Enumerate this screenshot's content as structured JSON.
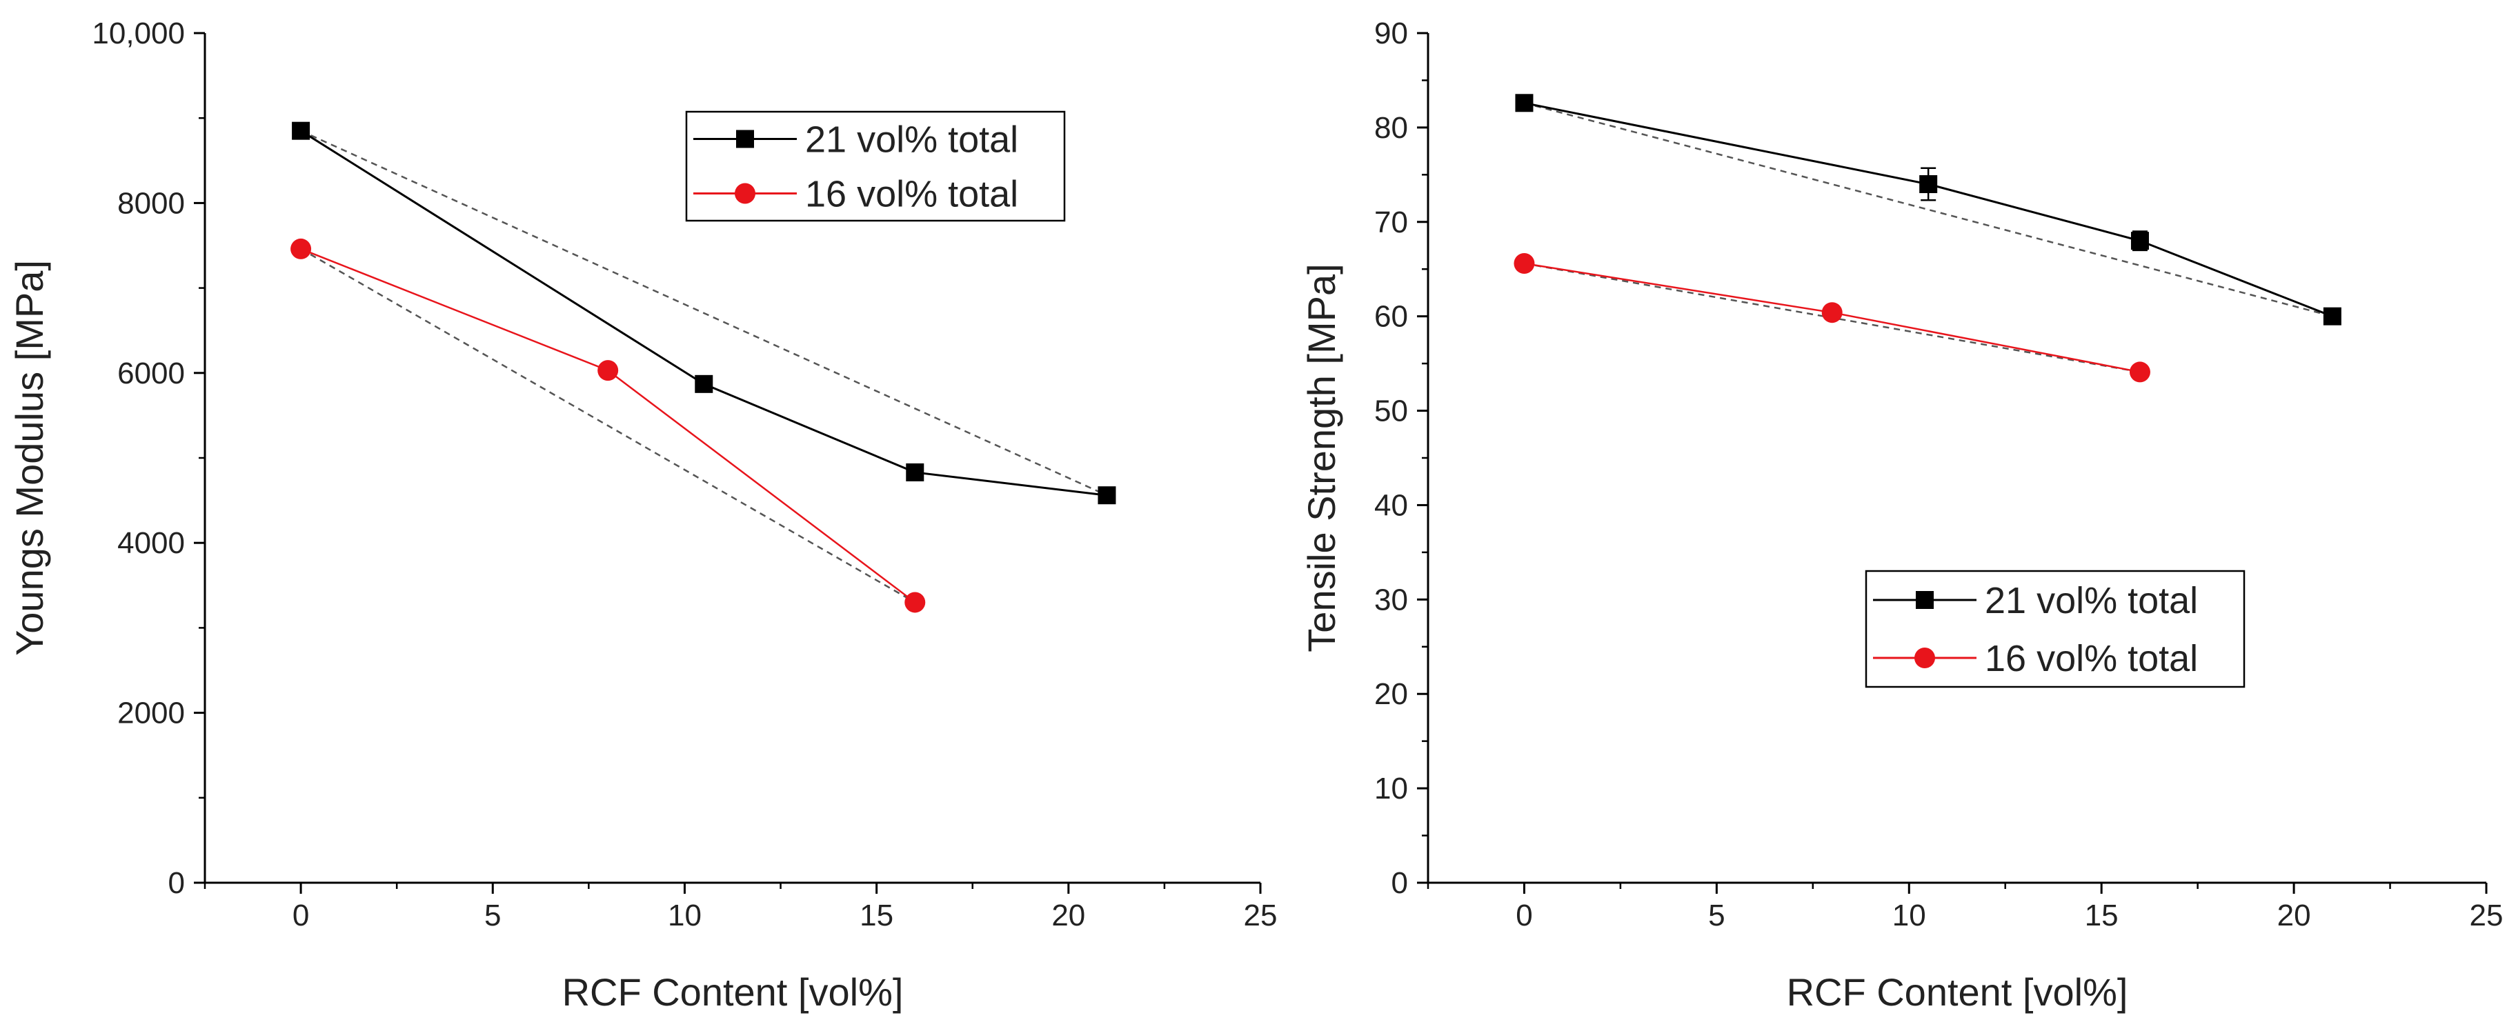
{
  "chart_data": [
    {
      "type": "line",
      "title": "",
      "xlabel": "RCF Content [vol%]",
      "ylabel": "Youngs Modulus [MPa]",
      "xlim": [
        -2.5,
        25
      ],
      "ylim": [
        0,
        10000
      ],
      "xticks": [
        0,
        5,
        10,
        15,
        20,
        25
      ],
      "yticks": [
        0,
        2000,
        4000,
        6000,
        8000,
        10000
      ],
      "xtick_labels": [
        "0",
        "5",
        "10",
        "15",
        "20",
        "25"
      ],
      "ytick_labels": [
        "0",
        "2000",
        "4000",
        "6000",
        "8000",
        "10,000"
      ],
      "grid": false,
      "legend_position": "top-right",
      "series": [
        {
          "name": "21 vol% total",
          "color": "#000000",
          "marker": "square",
          "x": [
            0,
            10.5,
            16,
            21
          ],
          "y": [
            8850,
            5870,
            4830,
            4560
          ]
        },
        {
          "name": "16 vol% total",
          "color": "#e8141b",
          "marker": "circle",
          "x": [
            0,
            8,
            16
          ],
          "y": [
            7460,
            6030,
            3300
          ]
        }
      ],
      "reference_lines": [
        {
          "color": "#555555",
          "style": "dashed",
          "x": [
            0,
            21
          ],
          "y": [
            8850,
            4560
          ]
        },
        {
          "color": "#555555",
          "style": "dashed",
          "x": [
            0,
            16
          ],
          "y": [
            7460,
            3300
          ]
        }
      ]
    },
    {
      "type": "line",
      "title": "",
      "xlabel": "RCF Content [vol%]",
      "ylabel": "Tensile Strength [MPa]",
      "xlim": [
        -2.5,
        25
      ],
      "ylim": [
        0,
        90
      ],
      "xticks": [
        0,
        5,
        10,
        15,
        20,
        25
      ],
      "yticks": [
        0,
        10,
        20,
        30,
        40,
        50,
        60,
        70,
        80,
        90
      ],
      "xtick_labels": [
        "0",
        "5",
        "10",
        "15",
        "20",
        "25"
      ],
      "ytick_labels": [
        "0",
        "10",
        "20",
        "30",
        "40",
        "50",
        "60",
        "70",
        "80",
        "90"
      ],
      "grid": false,
      "legend_position": "bottom-center",
      "series": [
        {
          "name": "21 vol% total",
          "color": "#000000",
          "marker": "square",
          "x": [
            0,
            10.5,
            16,
            21
          ],
          "y": [
            82.6,
            74,
            68,
            60
          ],
          "err": [
            0.8,
            1.7,
            1.0,
            0.4
          ]
        },
        {
          "name": "16 vol% total",
          "color": "#e8141b",
          "marker": "circle",
          "x": [
            0,
            8,
            16
          ],
          "y": [
            65.6,
            60.4,
            54.1
          ]
        }
      ],
      "reference_lines": [
        {
          "color": "#555555",
          "style": "dashed",
          "x": [
            0,
            21
          ],
          "y": [
            82.6,
            60
          ]
        },
        {
          "color": "#555555",
          "style": "dashed",
          "x": [
            0,
            16
          ],
          "y": [
            65.6,
            54.1
          ]
        }
      ]
    }
  ]
}
